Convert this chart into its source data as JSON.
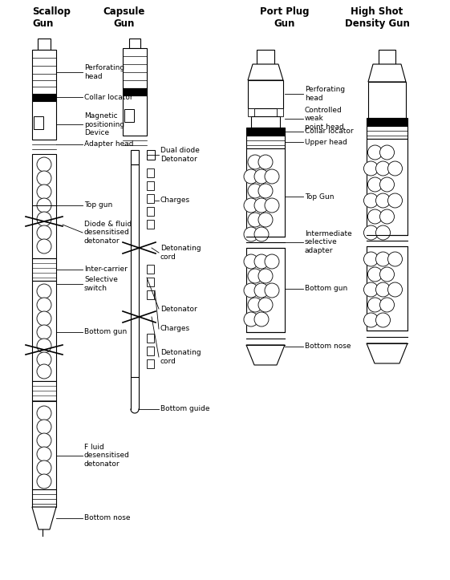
{
  "title_scallop": "Scallop\nGun",
  "title_capsule": "Capsule\nGun",
  "title_portplug": "Port Plug\nGun",
  "title_highshot": "High Shot\nDensity Gun",
  "bg_color": "#ffffff",
  "line_color": "#000000",
  "font_size_title": 8.5,
  "font_size_label": 6.5
}
